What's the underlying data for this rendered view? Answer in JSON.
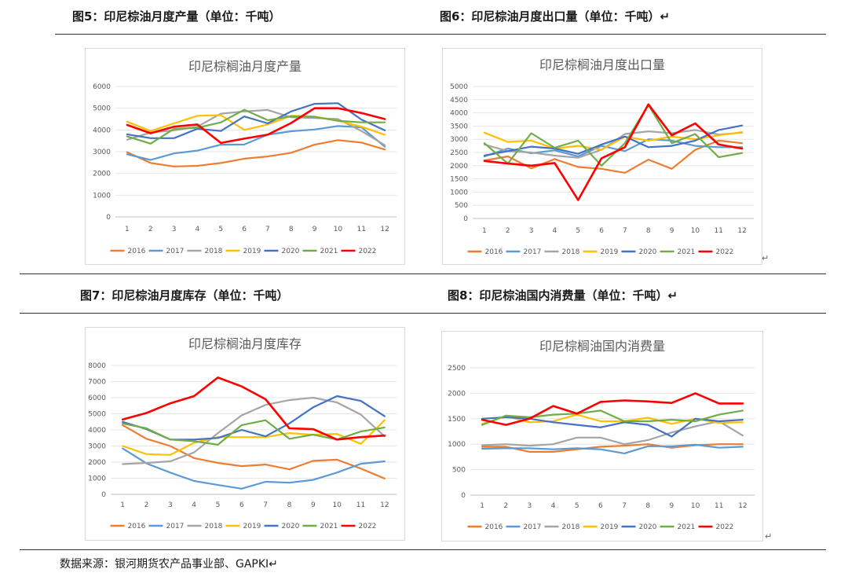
{
  "figures": [
    {
      "label": "图5：印尼棕油月度产量（单位：千吨）"
    },
    {
      "label": "图6：印尼棕油月度出口量（单位：千吨）↵"
    },
    {
      "label": "图7：印尼棕油月度库存（单位：千吨）"
    },
    {
      "label": "图8：印尼棕油国内消费量（单位：千吨）↵"
    }
  ],
  "source": "数据来源：银河期货农产品事业部、GAPKI↵",
  "return_mark": "↵",
  "series_colors": {
    "2016": "#ED7D31",
    "2017": "#5B9BD5",
    "2018": "#A5A5A5",
    "2019": "#FFC000",
    "2020": "#4472C4",
    "2021": "#70AD47",
    "2022": "#FF0000"
  },
  "chart_data": [
    {
      "type": "line",
      "title": "印尼棕榈油月度产量",
      "categories": [
        "1",
        "2",
        "3",
        "4",
        "5",
        "6",
        "7",
        "8",
        "9",
        "10",
        "11",
        "12"
      ],
      "ylim": [
        0,
        6000
      ],
      "yticks": [
        0,
        1000,
        2000,
        3000,
        4000,
        5000,
        6000
      ],
      "legend": "bottom",
      "series": [
        {
          "name": "2016",
          "values": [
            2980,
            2480,
            2320,
            2350,
            2480,
            2680,
            2780,
            2950,
            3320,
            3530,
            3420,
            3100
          ]
        },
        {
          "name": "2017",
          "values": [
            2880,
            2620,
            2920,
            3050,
            3320,
            3330,
            3780,
            3940,
            4020,
            4180,
            4120,
            3230
          ]
        },
        {
          "name": "2018",
          "values": [
            3550,
            3880,
            3980,
            4150,
            4750,
            4850,
            4920,
            4580,
            4550,
            4500,
            3950,
            3300
          ]
        },
        {
          "name": "2019",
          "values": [
            4380,
            3950,
            4300,
            4650,
            4680,
            4000,
            4250,
            4650,
            4620,
            4420,
            4150,
            3780
          ]
        },
        {
          "name": "2020",
          "values": [
            3800,
            3620,
            3620,
            4050,
            3950,
            4620,
            4300,
            4850,
            5200,
            5230,
            4480,
            3980
          ]
        },
        {
          "name": "2021",
          "values": [
            3700,
            3370,
            4050,
            4100,
            4350,
            4930,
            4450,
            4630,
            4600,
            4420,
            4350,
            4350
          ]
        },
        {
          "name": "2022",
          "values": [
            4230,
            3850,
            4150,
            4250,
            3400,
            3600,
            3780,
            4320,
            5000,
            5000,
            4780,
            4500
          ]
        }
      ]
    },
    {
      "type": "line",
      "title": "印尼棕榈油月度出口量",
      "categories": [
        "1",
        "2",
        "3",
        "4",
        "5",
        "6",
        "7",
        "8",
        "9",
        "10",
        "11",
        "12"
      ],
      "ylim": [
        0,
        5000
      ],
      "yticks": [
        0,
        500,
        1000,
        1500,
        2000,
        2500,
        3000,
        3500,
        4000,
        4500,
        5000
      ],
      "legend": "bottom",
      "series": [
        {
          "name": "2016",
          "values": [
            2200,
            2350,
            1900,
            2250,
            1950,
            1880,
            1730,
            2230,
            1880,
            2600,
            2950,
            2850
          ]
        },
        {
          "name": "2017",
          "values": [
            2350,
            2650,
            2470,
            2580,
            2350,
            2750,
            2550,
            3000,
            2950,
            2750,
            2700,
            2700
          ]
        },
        {
          "name": "2018",
          "values": [
            2800,
            2550,
            2500,
            2380,
            2300,
            2600,
            3200,
            3300,
            3230,
            3350,
            3180,
            3250
          ]
        },
        {
          "name": "2019",
          "values": [
            3250,
            2900,
            2950,
            2650,
            2750,
            2600,
            3100,
            2950,
            3100,
            3000,
            3150,
            3270
          ]
        },
        {
          "name": "2020",
          "values": [
            2380,
            2550,
            2720,
            2650,
            2450,
            2800,
            3100,
            2700,
            2750,
            2950,
            3350,
            3520
          ]
        },
        {
          "name": "2021",
          "values": [
            2850,
            2080,
            3230,
            2680,
            2950,
            2000,
            2850,
            4300,
            2850,
            3200,
            2320,
            2480
          ]
        },
        {
          "name": "2022",
          "values": [
            2180,
            2080,
            2000,
            2100,
            700,
            2280,
            2700,
            4320,
            3150,
            3600,
            2800,
            2650
          ]
        }
      ]
    },
    {
      "type": "line",
      "title": "印尼棕榈油月度库存",
      "categories": [
        "1",
        "2",
        "3",
        "4",
        "5",
        "6",
        "7",
        "8",
        "9",
        "10",
        "11",
        "12"
      ],
      "ylim": [
        0,
        8000
      ],
      "yticks": [
        0,
        1000,
        2000,
        3000,
        4000,
        5000,
        6000,
        7000,
        8000
      ],
      "legend": "bottom",
      "series": [
        {
          "name": "2016",
          "values": [
            4300,
            3450,
            3000,
            2250,
            1950,
            1750,
            1850,
            1550,
            2080,
            2150,
            1600,
            980
          ]
        },
        {
          "name": "2017",
          "values": [
            2850,
            1920,
            1350,
            830,
            580,
            350,
            780,
            720,
            900,
            1350,
            1900,
            2050
          ]
        },
        {
          "name": "2018",
          "values": [
            1880,
            1950,
            2050,
            2600,
            3800,
            4900,
            5550,
            5850,
            6000,
            5700,
            4950,
            3600
          ]
        },
        {
          "name": "2019",
          "values": [
            3000,
            2500,
            2450,
            3200,
            3550,
            3550,
            3550,
            3800,
            3700,
            3750,
            3130,
            4600
          ]
        },
        {
          "name": "2020",
          "values": [
            4500,
            4050,
            3400,
            3400,
            3500,
            4000,
            3600,
            4400,
            5400,
            6100,
            5800,
            4850
          ]
        },
        {
          "name": "2021",
          "values": [
            4400,
            4100,
            3400,
            3300,
            3080,
            4300,
            4600,
            3450,
            3700,
            3400,
            3900,
            4150
          ]
        },
        {
          "name": "2022",
          "values": [
            4650,
            5050,
            5650,
            6100,
            7250,
            6700,
            5900,
            4100,
            4050,
            3400,
            3550,
            3650
          ]
        }
      ]
    },
    {
      "type": "line",
      "title": "印尼棕榈油国内消费量",
      "categories": [
        "1",
        "2",
        "3",
        "4",
        "5",
        "6",
        "7",
        "8",
        "9",
        "10",
        "11",
        "12"
      ],
      "ylim": [
        0,
        2500
      ],
      "yticks": [
        0,
        500,
        1000,
        1500,
        2000,
        2500
      ],
      "legend": "bottom",
      "series": [
        {
          "name": "2016",
          "values": [
            950,
            950,
            850,
            850,
            900,
            950,
            970,
            1000,
            930,
            980,
            1000,
            1000
          ]
        },
        {
          "name": "2017",
          "values": [
            910,
            920,
            920,
            900,
            920,
            900,
            820,
            960,
            960,
            990,
            930,
            950
          ]
        },
        {
          "name": "2018",
          "values": [
            980,
            1000,
            970,
            1000,
            1130,
            1130,
            1000,
            1080,
            1230,
            1350,
            1450,
            1170
          ]
        },
        {
          "name": "2019",
          "values": [
            1400,
            1550,
            1430,
            1450,
            1580,
            1450,
            1450,
            1520,
            1400,
            1500,
            1420,
            1430
          ]
        },
        {
          "name": "2020",
          "values": [
            1500,
            1530,
            1500,
            1430,
            1380,
            1330,
            1430,
            1380,
            1150,
            1500,
            1450,
            1480
          ]
        },
        {
          "name": "2021",
          "values": [
            1380,
            1560,
            1530,
            1580,
            1600,
            1660,
            1450,
            1450,
            1480,
            1450,
            1580,
            1660
          ]
        },
        {
          "name": "2022",
          "values": [
            1480,
            1380,
            1500,
            1750,
            1600,
            1830,
            1860,
            1840,
            1810,
            2000,
            1800,
            1800
          ]
        }
      ]
    }
  ]
}
